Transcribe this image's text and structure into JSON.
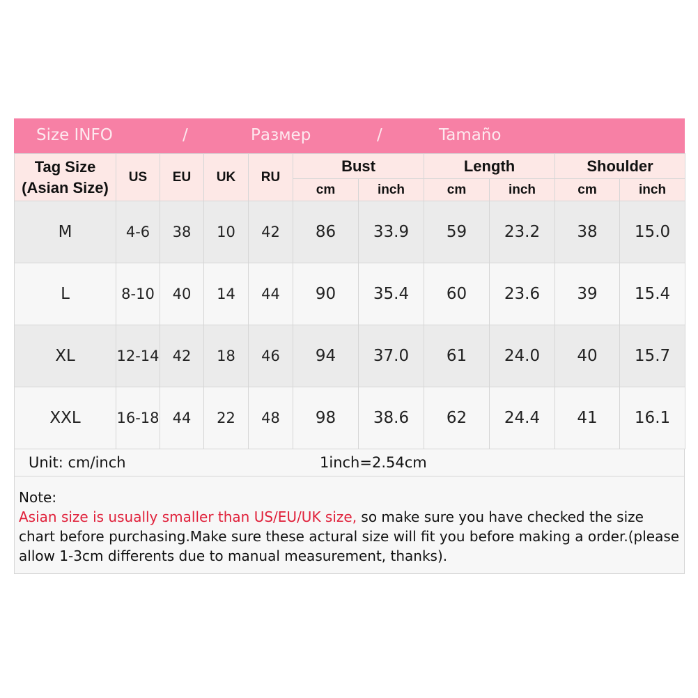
{
  "title_bar": {
    "en": "Size INFO",
    "sep": "/",
    "ru": "Размер",
    "es": "Tamaño"
  },
  "headers": {
    "tag_line1": "Tag Size",
    "tag_line2": "(Asian Size)",
    "us": "US",
    "eu": "EU",
    "uk": "UK",
    "ru": "RU",
    "bust": "Bust",
    "length": "Length",
    "shoulder": "Shoulder",
    "cm": "cm",
    "inch": "inch"
  },
  "rows": [
    [
      "M",
      "4-6",
      "38",
      "10",
      "42",
      "86",
      "33.9",
      "59",
      "23.2",
      "38",
      "15.0"
    ],
    [
      "L",
      "8-10",
      "40",
      "14",
      "44",
      "90",
      "35.4",
      "60",
      "23.6",
      "39",
      "15.4"
    ],
    [
      "XL",
      "12-14",
      "42",
      "18",
      "46",
      "94",
      "37.0",
      "61",
      "24.0",
      "40",
      "15.7"
    ],
    [
      "XXL",
      "16-18",
      "44",
      "22",
      "48",
      "98",
      "38.6",
      "62",
      "24.4",
      "41",
      "16.1"
    ]
  ],
  "unit": {
    "label": "Unit: cm/inch",
    "conversion": "1inch=2.54cm"
  },
  "note": {
    "label": "Note:",
    "warning": "Asian size is usually smaller than US/EU/UK size,",
    "text": " so make sure you have checked the size chart before purchasing.Make sure these actural size will fit you before making a order.(please allow 1-3cm differents due to manual measurement, thanks)."
  },
  "colors": {
    "title_bg": "#f780a5",
    "header_bg": "#fde8e6",
    "warning": "#e0203a"
  }
}
